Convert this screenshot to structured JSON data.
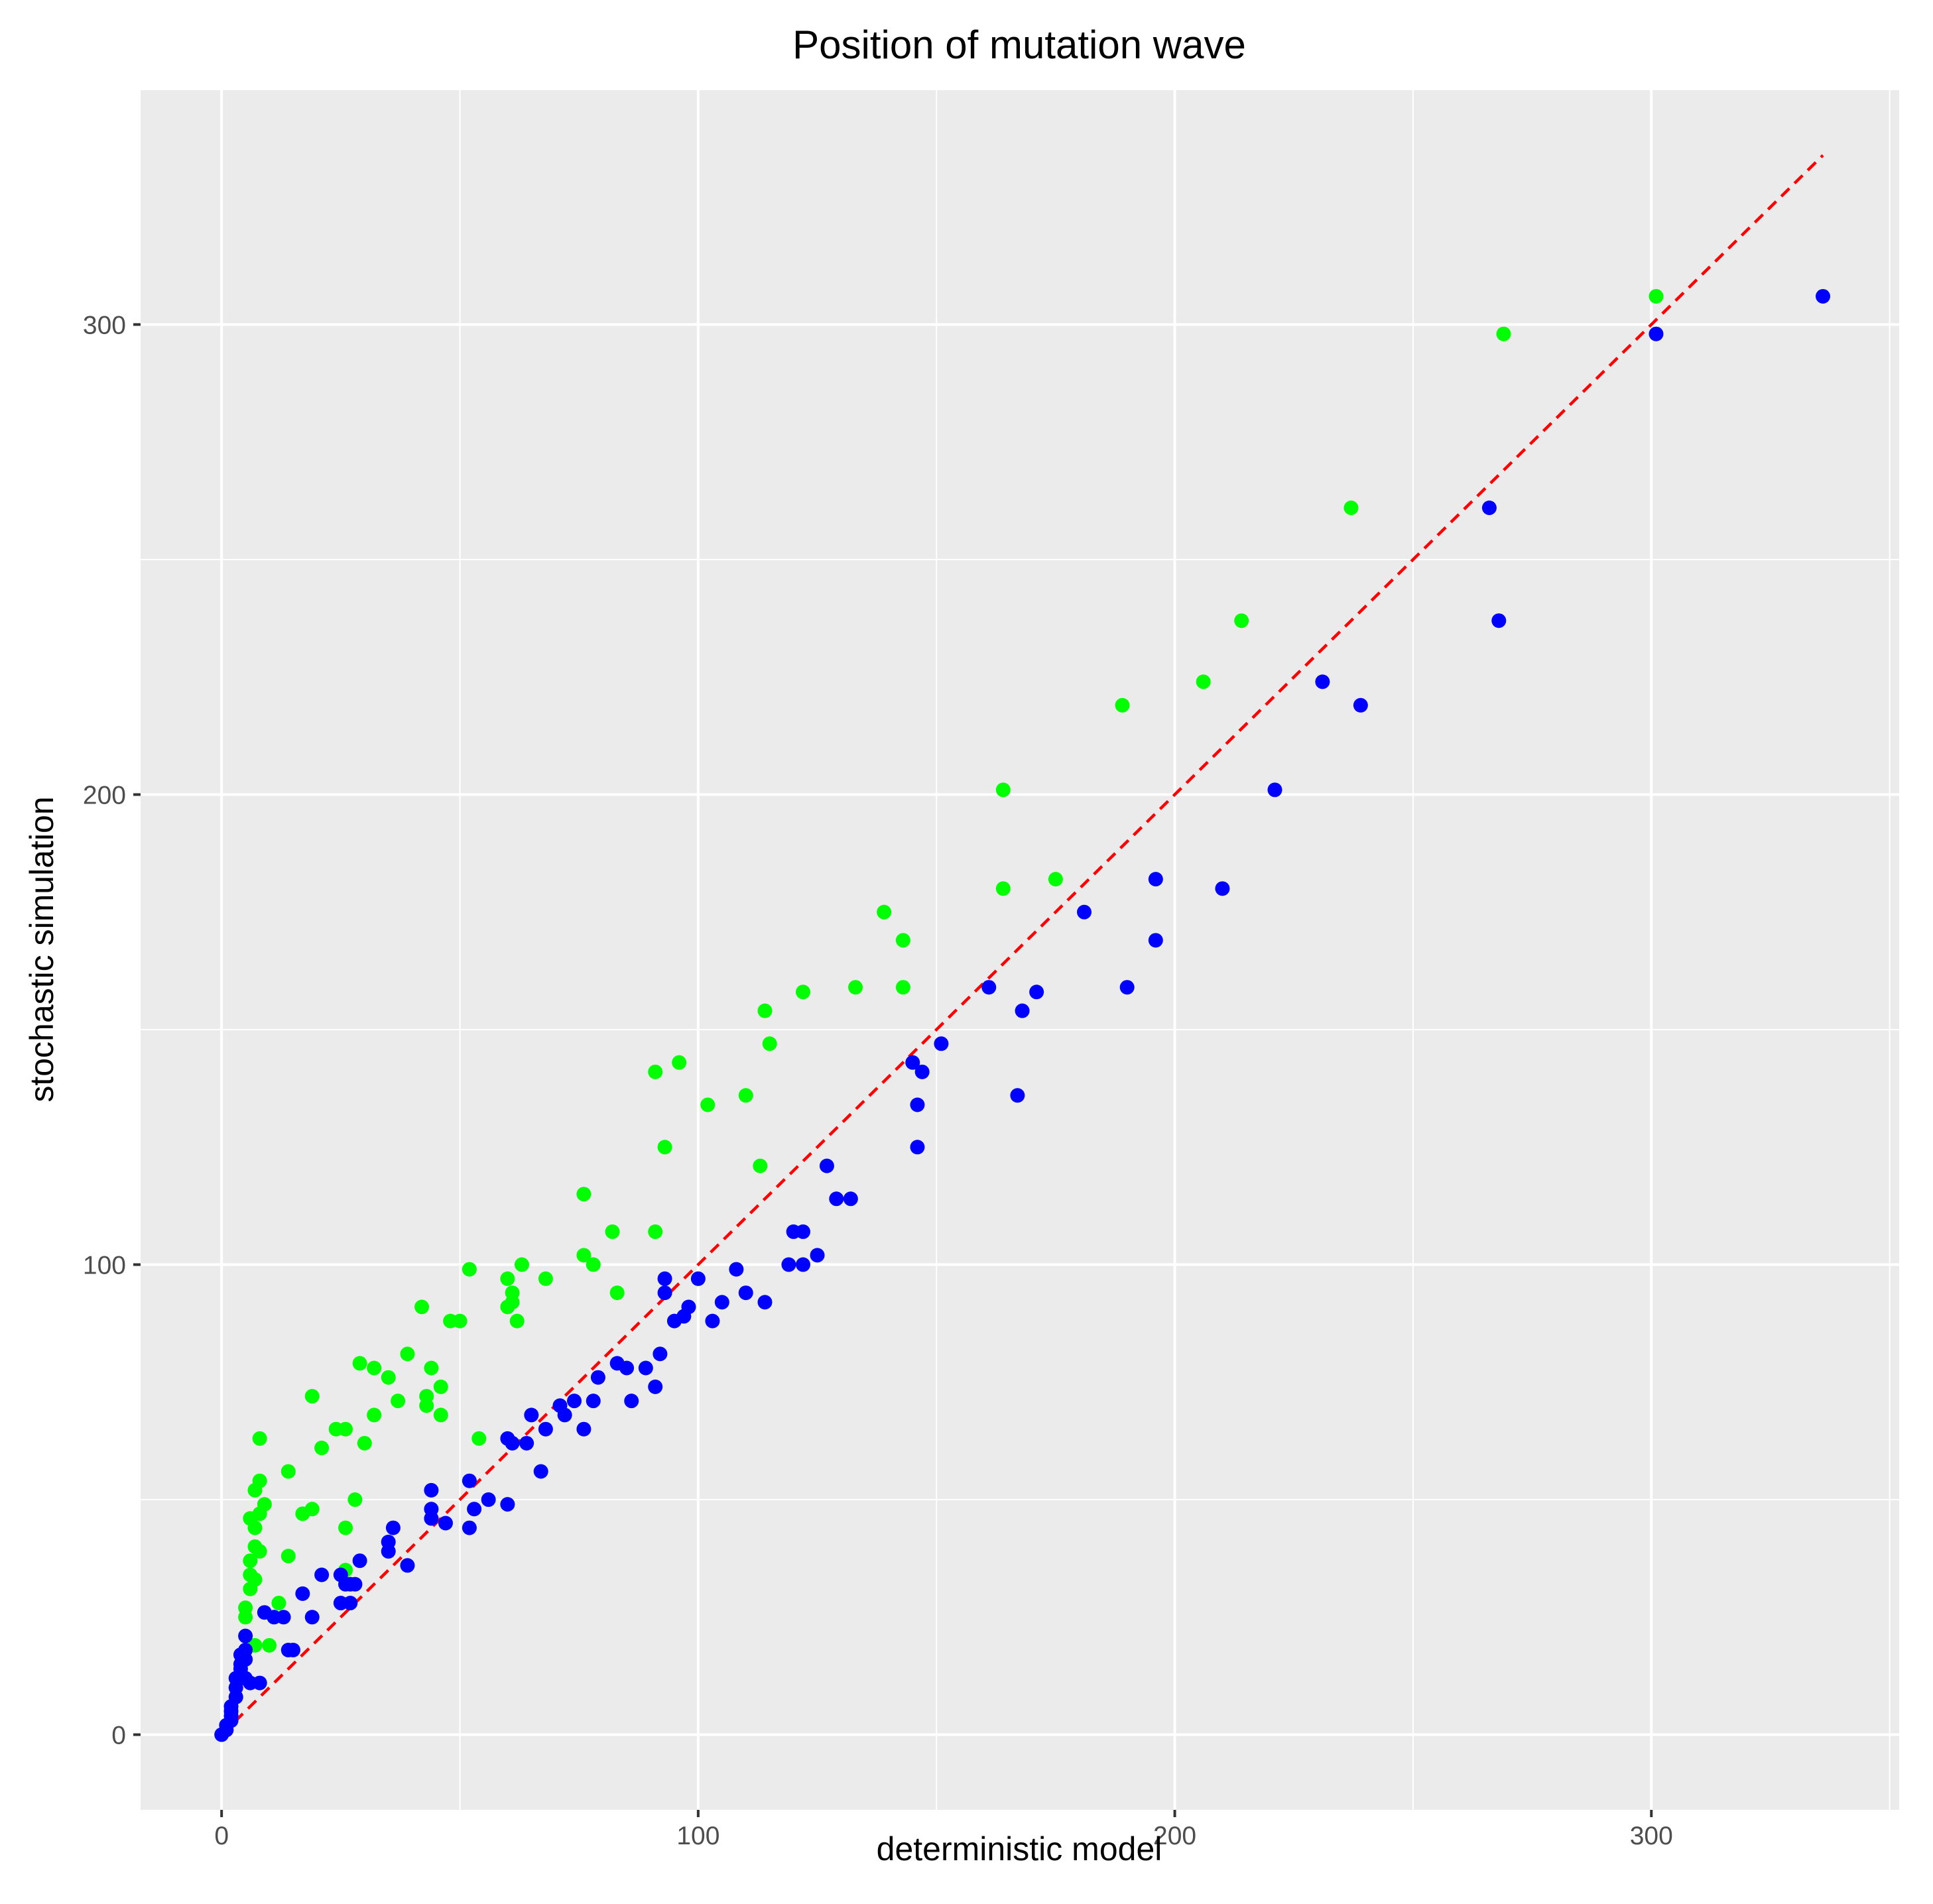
{
  "chart_data": {
    "type": "scatter",
    "title": "Position of mutation wave",
    "xlabel": "deterministic model",
    "ylabel": "stochastic simulation",
    "xlim": [
      -17,
      352
    ],
    "ylim": [
      -16,
      350
    ],
    "x_ticks": [
      0,
      100,
      200,
      300
    ],
    "x_tick_labels": [
      "0",
      "100",
      "200",
      "300"
    ],
    "y_ticks": [
      0,
      100,
      200,
      300
    ],
    "y_tick_labels": [
      "0",
      "100",
      "200",
      "300"
    ],
    "x_minor": [
      50,
      150,
      250,
      350
    ],
    "y_minor": [
      50,
      150,
      250,
      350
    ],
    "grid": true,
    "background": "#ebebeb",
    "reference_line": {
      "from": [
        0,
        0
      ],
      "to": [
        336,
        336
      ],
      "color": "#ff0000",
      "style": "dashed"
    },
    "series": [
      {
        "color": "#00ff00",
        "points": [
          [
            301,
            306
          ],
          [
            269,
            298
          ],
          [
            237,
            261
          ],
          [
            214,
            237
          ],
          [
            206,
            224
          ],
          [
            189,
            219
          ],
          [
            175,
            182
          ],
          [
            164,
            201
          ],
          [
            164,
            180
          ],
          [
            143,
            169
          ],
          [
            143,
            159
          ],
          [
            139,
            175
          ],
          [
            133,
            159
          ],
          [
            122,
            158
          ],
          [
            115,
            147
          ],
          [
            114,
            154
          ],
          [
            113,
            121
          ],
          [
            110,
            136
          ],
          [
            102,
            134
          ],
          [
            96,
            143
          ],
          [
            93,
            125
          ],
          [
            91,
            141
          ],
          [
            91,
            107
          ],
          [
            83,
            94
          ],
          [
            82,
            107
          ],
          [
            78,
            100
          ],
          [
            76,
            115
          ],
          [
            76,
            102
          ],
          [
            68,
            97
          ],
          [
            63,
            100
          ],
          [
            62,
            88
          ],
          [
            61,
            92
          ],
          [
            61,
            94
          ],
          [
            60,
            97
          ],
          [
            60,
            91
          ],
          [
            54,
            63
          ],
          [
            52,
            99
          ],
          [
            50,
            88
          ],
          [
            48,
            88
          ],
          [
            46,
            68
          ],
          [
            46,
            74
          ],
          [
            44,
            78
          ],
          [
            43,
            72
          ],
          [
            43,
            70
          ],
          [
            42,
            91
          ],
          [
            39,
            81
          ],
          [
            37,
            71
          ],
          [
            35,
            76
          ],
          [
            32,
            68
          ],
          [
            32,
            78
          ],
          [
            29,
            79
          ],
          [
            30,
            62
          ],
          [
            28,
            50
          ],
          [
            26,
            65
          ],
          [
            26,
            44
          ],
          [
            26,
            35
          ],
          [
            24,
            65
          ],
          [
            21,
            61
          ],
          [
            19,
            48
          ],
          [
            19,
            72
          ],
          [
            17,
            47
          ],
          [
            14,
            38
          ],
          [
            14,
            56
          ],
          [
            12,
            28
          ],
          [
            10,
            19
          ],
          [
            9,
            49
          ],
          [
            8,
            54
          ],
          [
            8,
            63
          ],
          [
            8,
            39
          ],
          [
            8,
            47
          ],
          [
            7,
            44
          ],
          [
            7,
            40
          ],
          [
            7,
            33
          ],
          [
            7,
            52
          ],
          [
            6,
            46
          ],
          [
            6,
            37
          ],
          [
            6,
            31
          ],
          [
            6,
            34
          ],
          [
            5,
            27
          ],
          [
            5,
            25
          ],
          [
            7,
            19
          ]
        ]
      },
      {
        "color": "#0000ff",
        "points": [
          [
            336,
            306
          ],
          [
            301,
            298
          ],
          [
            268,
            237
          ],
          [
            266,
            261
          ],
          [
            239,
            219
          ],
          [
            231,
            224
          ],
          [
            221,
            201
          ],
          [
            210,
            180
          ],
          [
            196,
            182
          ],
          [
            196,
            169
          ],
          [
            190,
            159
          ],
          [
            181,
            175
          ],
          [
            171,
            158
          ],
          [
            168,
            154
          ],
          [
            167,
            136
          ],
          [
            161,
            159
          ],
          [
            151,
            147
          ],
          [
            147,
            141
          ],
          [
            146,
            125
          ],
          [
            146,
            134
          ],
          [
            145,
            143
          ],
          [
            132,
            114
          ],
          [
            129,
            114
          ],
          [
            127,
            121
          ],
          [
            125,
            102
          ],
          [
            122,
            107
          ],
          [
            122,
            100
          ],
          [
            120,
            107
          ],
          [
            119,
            100
          ],
          [
            114,
            92
          ],
          [
            110,
            94
          ],
          [
            108,
            99
          ],
          [
            105,
            92
          ],
          [
            103,
            88
          ],
          [
            100,
            97
          ],
          [
            98,
            91
          ],
          [
            97,
            89
          ],
          [
            95,
            88
          ],
          [
            93,
            97
          ],
          [
            93,
            94
          ],
          [
            92,
            81
          ],
          [
            91,
            74
          ],
          [
            89,
            78
          ],
          [
            86,
            71
          ],
          [
            85,
            78
          ],
          [
            83,
            79
          ],
          [
            79,
            76
          ],
          [
            78,
            71
          ],
          [
            76,
            65
          ],
          [
            74,
            71
          ],
          [
            72,
            68
          ],
          [
            71,
            70
          ],
          [
            68,
            65
          ],
          [
            67,
            56
          ],
          [
            65,
            68
          ],
          [
            64,
            62
          ],
          [
            61,
            62
          ],
          [
            60,
            63
          ],
          [
            60,
            49
          ],
          [
            56,
            50
          ],
          [
            53,
            48
          ],
          [
            52,
            44
          ],
          [
            52,
            54
          ],
          [
            47,
            45
          ],
          [
            44,
            52
          ],
          [
            44,
            46
          ],
          [
            44,
            48
          ],
          [
            39,
            36
          ],
          [
            36,
            44
          ],
          [
            35,
            41
          ],
          [
            35,
            39
          ],
          [
            29,
            37
          ],
          [
            28,
            32
          ],
          [
            27,
            28
          ],
          [
            27,
            32
          ],
          [
            26,
            32
          ],
          [
            25,
            28
          ],
          [
            25,
            34
          ],
          [
            21,
            34
          ],
          [
            19,
            25
          ],
          [
            17,
            30
          ],
          [
            15,
            18
          ],
          [
            14,
            18
          ],
          [
            13,
            25
          ],
          [
            11,
            25
          ],
          [
            9,
            26
          ],
          [
            8,
            11
          ],
          [
            6,
            11
          ],
          [
            5,
            18
          ],
          [
            5,
            21
          ],
          [
            5,
            16
          ],
          [
            5,
            12
          ],
          [
            4,
            17
          ],
          [
            4,
            15
          ],
          [
            4,
            14
          ],
          [
            3,
            12
          ],
          [
            3,
            10
          ],
          [
            3,
            8
          ],
          [
            2,
            6
          ],
          [
            2,
            5
          ],
          [
            2,
            4
          ],
          [
            2,
            3
          ],
          [
            1,
            2
          ],
          [
            1,
            1
          ],
          [
            0,
            0
          ]
        ]
      }
    ]
  }
}
